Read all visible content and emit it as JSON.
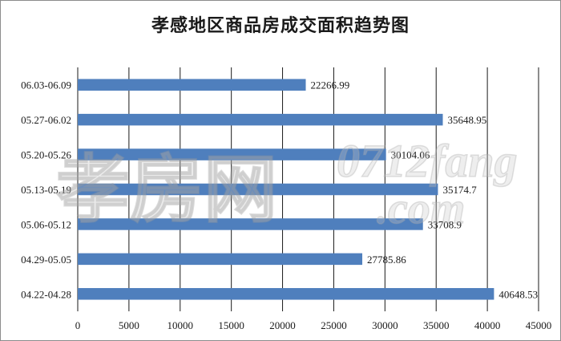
{
  "chart_data": {
    "type": "bar",
    "orientation": "horizontal",
    "title": "孝感地区商品房成交面积趋势图",
    "categories": [
      "06.03-06.09",
      "05.27-06.02",
      "05.20-05.26",
      "05.13-05.19",
      "05.06-05.12",
      "04.29-05.05",
      "04.22-04.28"
    ],
    "values": [
      22266.99,
      35648.95,
      30104.06,
      35174.7,
      33708.9,
      27785.86,
      40648.53
    ],
    "value_labels": [
      "22266.99",
      "35648.95",
      "30104.06",
      "35174.7",
      "33708.9",
      "27785.86",
      "40648.53"
    ],
    "xlim": [
      0,
      45000
    ],
    "x_ticks": [
      "0",
      "5000",
      "10000",
      "15000",
      "20000",
      "25000",
      "30000",
      "35000",
      "40000",
      "45000"
    ],
    "grid": "vertical",
    "bar_color": "#4f7fbd"
  },
  "watermark": {
    "text_cn": "孝房网",
    "text_url": "0712fang",
    "text_com": ".com"
  }
}
